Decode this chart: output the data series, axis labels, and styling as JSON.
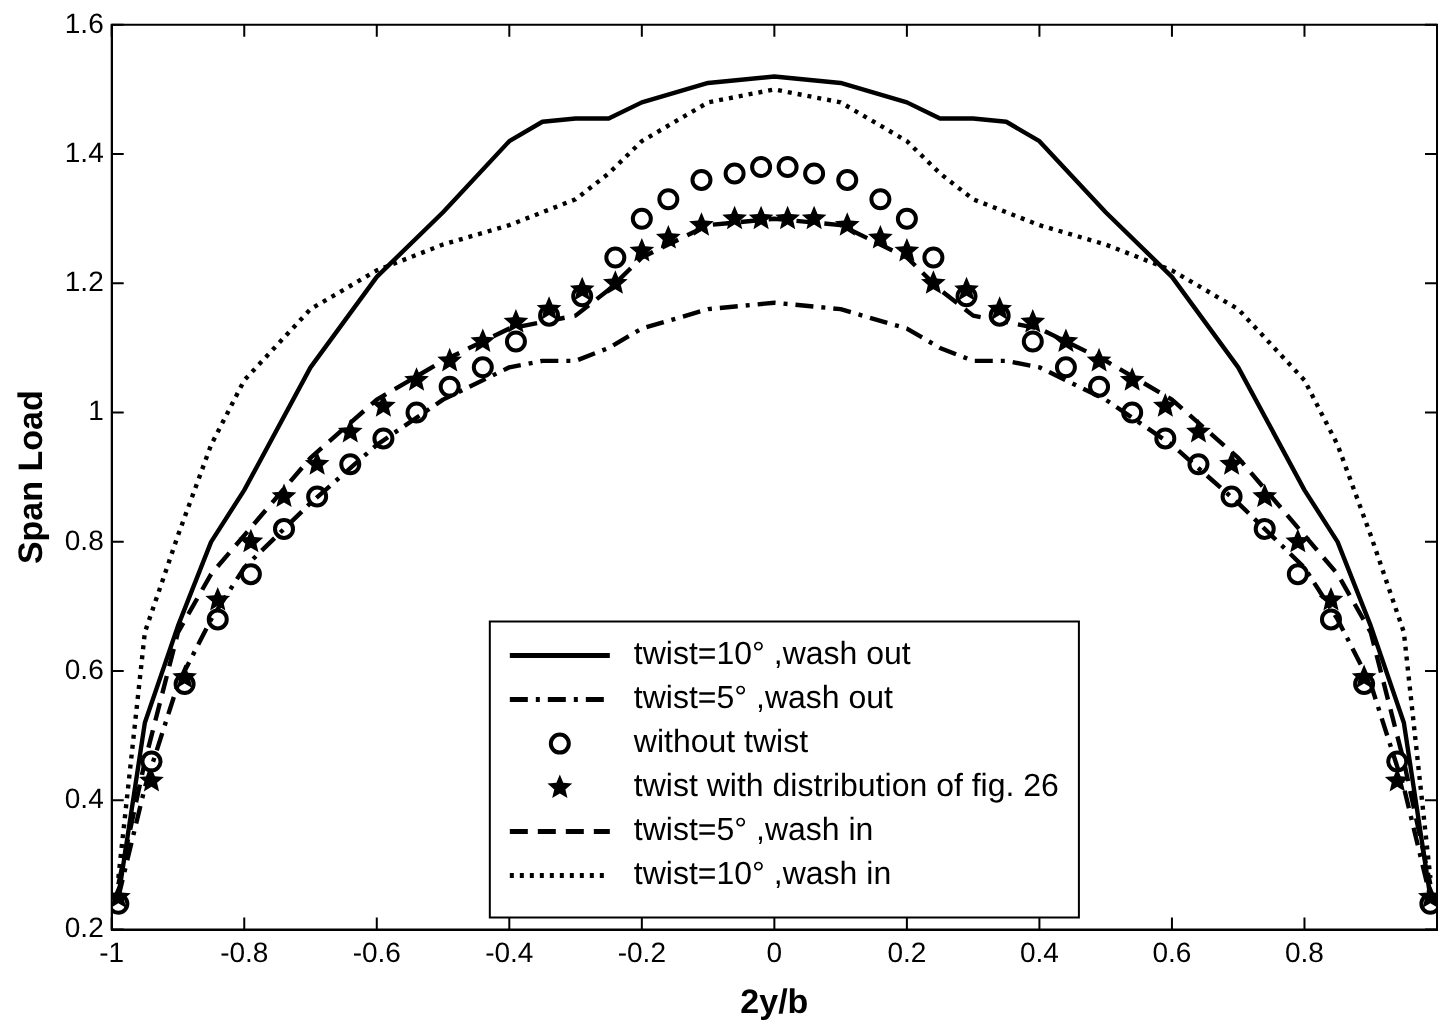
{
  "chart_data": {
    "type": "line",
    "xlabel": "2y/b",
    "ylabel": "Span Load",
    "xlim": [
      -1,
      1
    ],
    "ylim": [
      0.2,
      1.6
    ],
    "xticks": [
      -1,
      -0.8,
      -0.6,
      -0.4,
      -0.2,
      0,
      0.2,
      0.4,
      0.6,
      0.8
    ],
    "yticks": [
      0.2,
      0.4,
      0.6,
      0.8,
      1,
      1.2,
      1.4,
      1.6
    ],
    "grid": false,
    "legend": "bottom",
    "marker": "none",
    "series": [
      {
        "name": "twist=10° ,wash out",
        "color": "#000000",
        "line_style": "solid",
        "x": [
          -0.99,
          -0.95,
          -0.9,
          -0.85,
          -0.8,
          -0.7,
          -0.6,
          -0.5,
          -0.4,
          -0.35,
          -0.3,
          -0.25,
          -0.2,
          -0.1,
          0,
          0.1,
          0.2,
          0.25,
          0.3,
          0.35,
          0.4,
          0.5,
          0.6,
          0.7,
          0.8,
          0.85,
          0.9,
          0.95,
          0.99
        ],
        "values": [
          0.25,
          0.52,
          0.67,
          0.8,
          0.88,
          1.07,
          1.21,
          1.31,
          1.42,
          1.45,
          1.455,
          1.455,
          1.48,
          1.51,
          1.52,
          1.51,
          1.48,
          1.455,
          1.455,
          1.45,
          1.42,
          1.31,
          1.21,
          1.07,
          0.88,
          0.8,
          0.67,
          0.52,
          0.25
        ]
      },
      {
        "name": "twist=5° ,wash out",
        "color": "#000000",
        "line_style": "dashdot",
        "x": [
          -0.99,
          -0.95,
          -0.9,
          -0.85,
          -0.8,
          -0.7,
          -0.6,
          -0.5,
          -0.4,
          -0.35,
          -0.3,
          -0.25,
          -0.2,
          -0.1,
          0,
          0.1,
          0.2,
          0.25,
          0.3,
          0.35,
          0.4,
          0.5,
          0.6,
          0.7,
          0.8,
          0.85,
          0.9,
          0.95,
          0.99
        ],
        "values": [
          0.25,
          0.42,
          0.58,
          0.68,
          0.76,
          0.86,
          0.95,
          1.02,
          1.07,
          1.08,
          1.08,
          1.1,
          1.13,
          1.16,
          1.17,
          1.16,
          1.13,
          1.1,
          1.08,
          1.08,
          1.07,
          1.02,
          0.95,
          0.86,
          0.76,
          0.68,
          0.58,
          0.42,
          0.25
        ]
      },
      {
        "type": "scatter",
        "name": "without twist",
        "color": "#000000",
        "marker": "circle",
        "x": [
          -0.99,
          -0.94,
          -0.89,
          -0.84,
          -0.79,
          -0.74,
          -0.69,
          -0.64,
          -0.59,
          -0.54,
          -0.49,
          -0.44,
          -0.39,
          -0.34,
          -0.29,
          -0.24,
          -0.2,
          -0.16,
          -0.11,
          -0.06,
          -0.02,
          0.02,
          0.06,
          0.11,
          0.16,
          0.2,
          0.24,
          0.29,
          0.34,
          0.39,
          0.44,
          0.49,
          0.54,
          0.59,
          0.64,
          0.69,
          0.74,
          0.79,
          0.84,
          0.89,
          0.94,
          0.99
        ],
        "values": [
          0.24,
          0.46,
          0.58,
          0.68,
          0.75,
          0.82,
          0.87,
          0.92,
          0.96,
          1.0,
          1.04,
          1.07,
          1.11,
          1.15,
          1.18,
          1.24,
          1.3,
          1.33,
          1.36,
          1.37,
          1.38,
          1.38,
          1.37,
          1.36,
          1.33,
          1.3,
          1.24,
          1.18,
          1.15,
          1.11,
          1.07,
          1.04,
          1.0,
          0.96,
          0.92,
          0.87,
          0.82,
          0.75,
          0.68,
          0.58,
          0.46,
          0.24
        ]
      },
      {
        "type": "scatter",
        "name": "twist with distribution of fig. 26",
        "color": "#000000",
        "marker": "star",
        "x": [
          -0.99,
          -0.94,
          -0.89,
          -0.84,
          -0.79,
          -0.74,
          -0.69,
          -0.64,
          -0.59,
          -0.54,
          -0.49,
          -0.44,
          -0.39,
          -0.34,
          -0.29,
          -0.24,
          -0.2,
          -0.16,
          -0.11,
          -0.06,
          -0.02,
          0.02,
          0.06,
          0.11,
          0.16,
          0.2,
          0.24,
          0.29,
          0.34,
          0.39,
          0.44,
          0.49,
          0.54,
          0.59,
          0.64,
          0.69,
          0.74,
          0.79,
          0.84,
          0.89,
          0.94,
          0.99
        ],
        "values": [
          0.25,
          0.43,
          0.59,
          0.71,
          0.8,
          0.87,
          0.92,
          0.97,
          1.01,
          1.05,
          1.08,
          1.11,
          1.14,
          1.16,
          1.19,
          1.2,
          1.25,
          1.27,
          1.29,
          1.3,
          1.3,
          1.3,
          1.3,
          1.29,
          1.27,
          1.25,
          1.2,
          1.19,
          1.16,
          1.14,
          1.11,
          1.08,
          1.05,
          1.01,
          0.97,
          0.92,
          0.87,
          0.8,
          0.71,
          0.59,
          0.43,
          0.25
        ]
      },
      {
        "name": "twist=5° ,wash in",
        "color": "#000000",
        "line_style": "dashed",
        "x": [
          -0.99,
          -0.95,
          -0.9,
          -0.85,
          -0.8,
          -0.7,
          -0.6,
          -0.5,
          -0.4,
          -0.35,
          -0.3,
          -0.25,
          -0.2,
          -0.1,
          0,
          0.1,
          0.2,
          0.25,
          0.3,
          0.35,
          0.4,
          0.5,
          0.6,
          0.7,
          0.8,
          0.85,
          0.9,
          0.95,
          0.99
        ],
        "values": [
          0.27,
          0.46,
          0.66,
          0.75,
          0.81,
          0.93,
          1.02,
          1.08,
          1.13,
          1.14,
          1.15,
          1.19,
          1.24,
          1.29,
          1.3,
          1.29,
          1.24,
          1.19,
          1.15,
          1.14,
          1.13,
          1.08,
          1.02,
          0.93,
          0.81,
          0.75,
          0.66,
          0.46,
          0.27
        ]
      },
      {
        "name": "twist=10° ,wash in",
        "color": "#000000",
        "line_style": "dotted",
        "x": [
          -0.99,
          -0.95,
          -0.9,
          -0.85,
          -0.8,
          -0.7,
          -0.6,
          -0.5,
          -0.4,
          -0.35,
          -0.3,
          -0.25,
          -0.2,
          -0.1,
          0,
          0.1,
          0.2,
          0.25,
          0.3,
          0.35,
          0.4,
          0.5,
          0.6,
          0.7,
          0.8,
          0.85,
          0.9,
          0.95,
          0.99
        ],
        "values": [
          0.28,
          0.66,
          0.81,
          0.95,
          1.05,
          1.16,
          1.22,
          1.26,
          1.29,
          1.31,
          1.33,
          1.37,
          1.42,
          1.48,
          1.5,
          1.48,
          1.42,
          1.37,
          1.33,
          1.31,
          1.29,
          1.26,
          1.22,
          1.16,
          1.05,
          0.95,
          0.81,
          0.66,
          0.28
        ]
      }
    ]
  }
}
